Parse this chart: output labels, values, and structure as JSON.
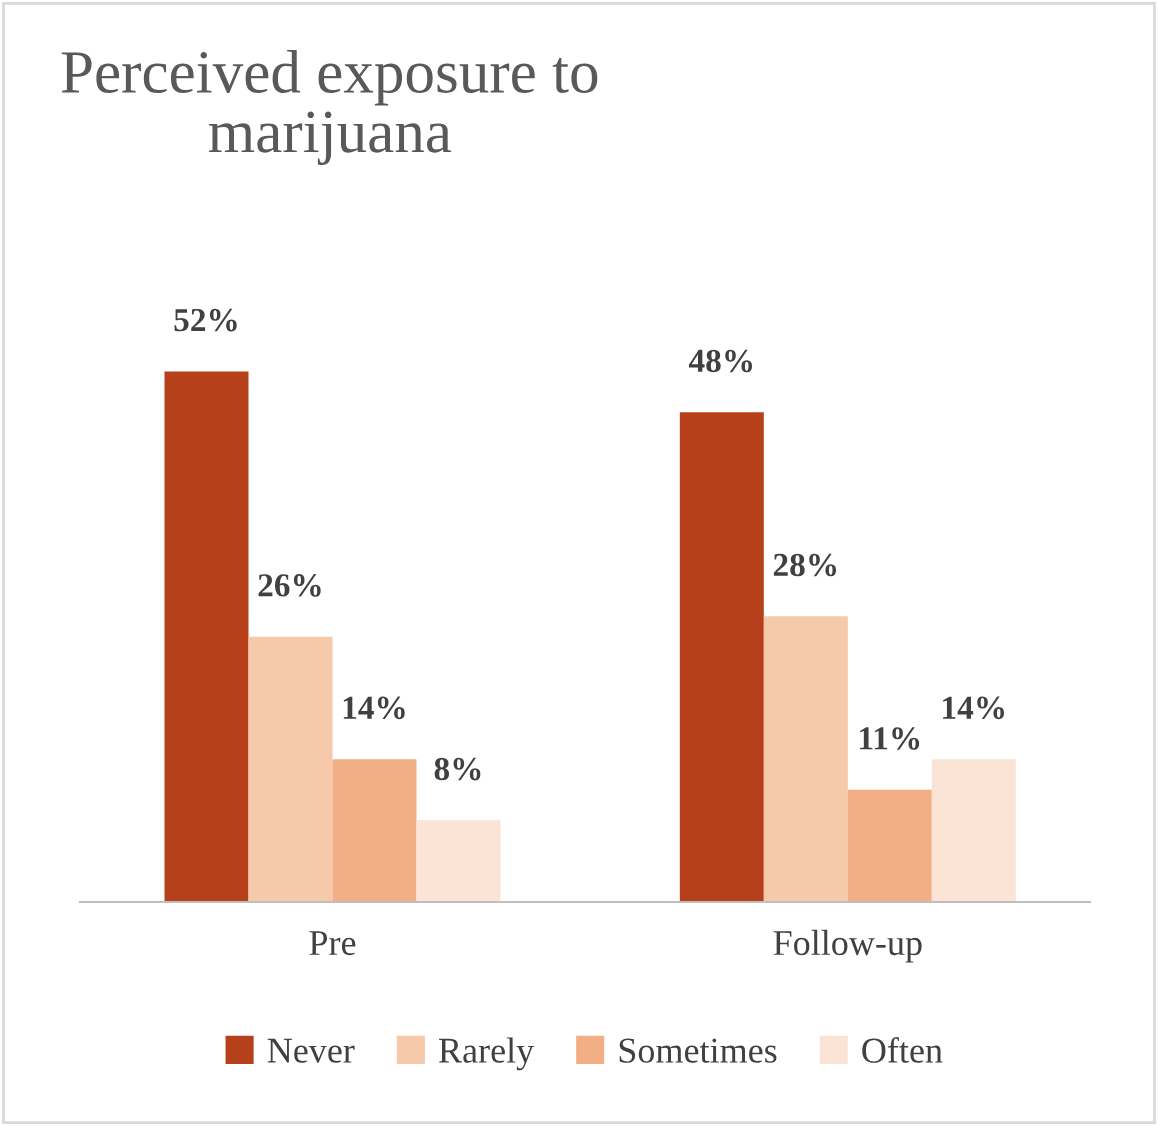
{
  "chart_data": {
    "type": "bar",
    "title": "Perceived exposure to\nmarijuana",
    "categories": [
      "Pre",
      "Follow-up"
    ],
    "series": [
      {
        "name": "Never",
        "color": "#b5401a",
        "values": [
          52,
          48
        ],
        "value_labels": [
          "52%",
          "48%"
        ]
      },
      {
        "name": "Rarely",
        "color": "#f7c9ab",
        "values": [
          26,
          28
        ],
        "value_labels": [
          "26%",
          "28%"
        ]
      },
      {
        "name": "Sometimes",
        "color": "#f2ae84",
        "values": [
          14,
          11
        ],
        "value_labels": [
          "14%",
          "11%"
        ]
      },
      {
        "name": "Often",
        "color": "#fbe3d5",
        "values": [
          8,
          14
        ],
        "value_labels": [
          "8%",
          "14%"
        ]
      }
    ],
    "grid": false,
    "legend": "bottom"
  }
}
